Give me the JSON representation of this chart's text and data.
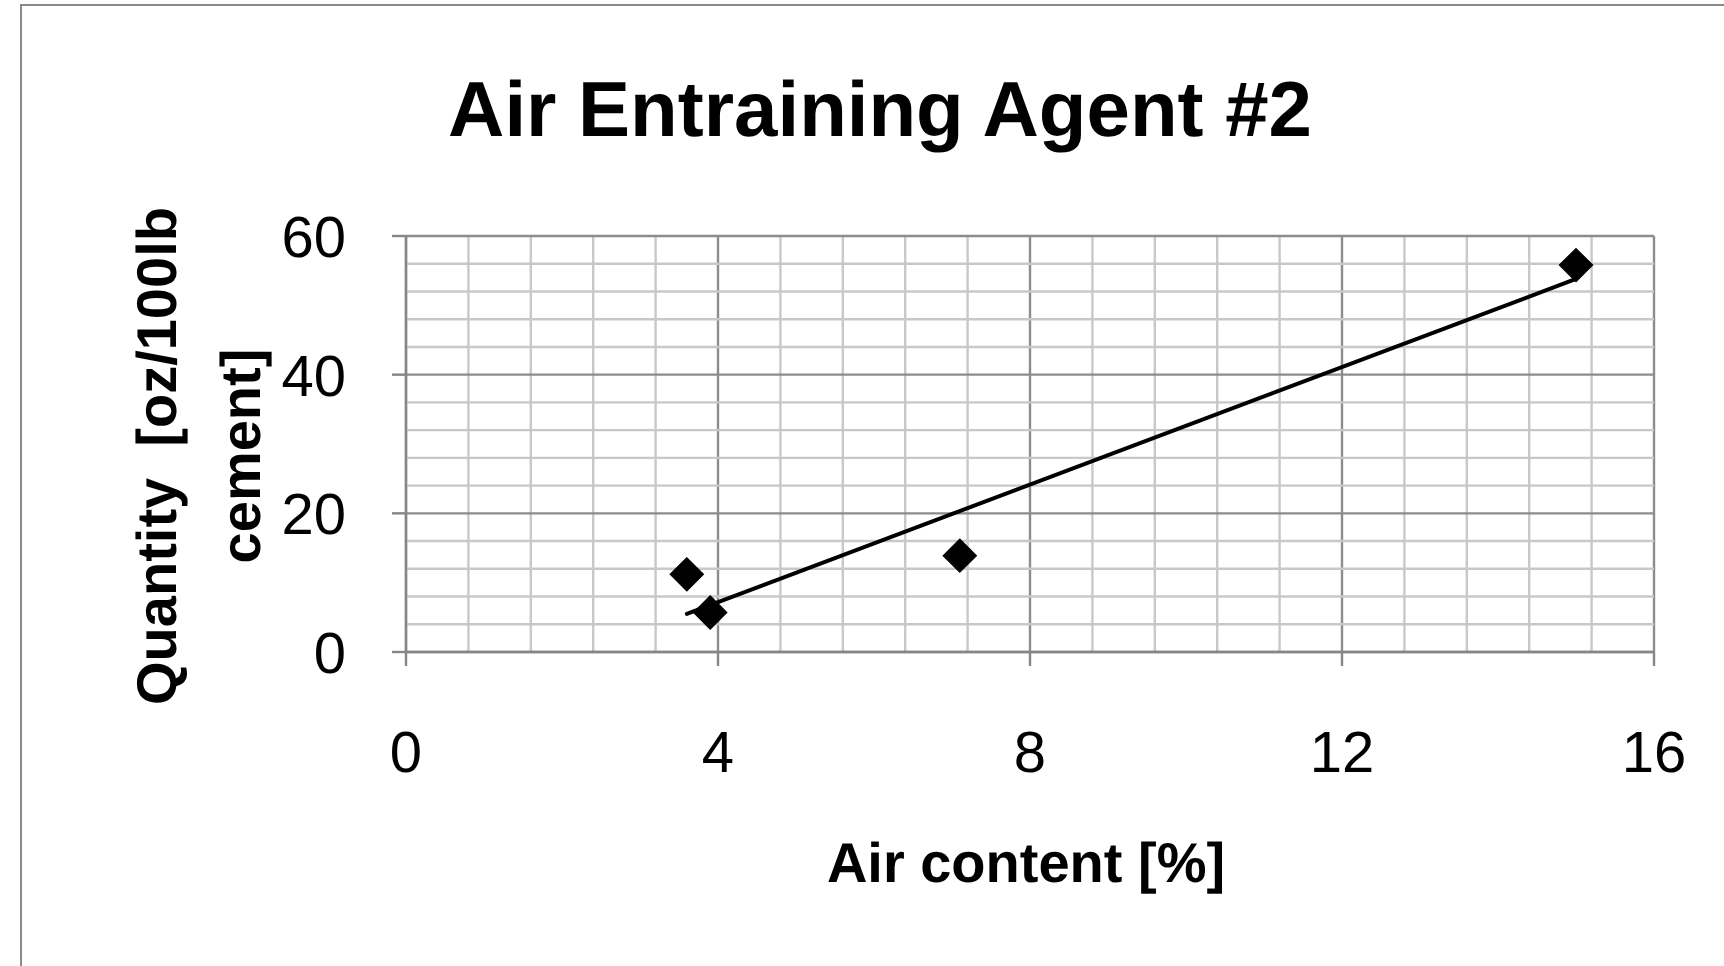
{
  "chart_data": {
    "type": "scatter",
    "title": "Air Entraining Agent #2",
    "xlabel": "Air content [%]",
    "ylabel": "Quantity  [oz/100lb cement]",
    "xlim": [
      0,
      16
    ],
    "ylim": [
      0,
      60
    ],
    "xticks": [
      0,
      {
        "value": 0.8,
        "label": null
      },
      {
        "value": 1.6,
        "label": null
      },
      {
        "value": 2.4,
        "label": null
      },
      {
        "value": 3.2,
        "label": null
      },
      4,
      {
        "value": 4.8,
        "label": null
      },
      {
        "value": 5.6,
        "label": null
      },
      {
        "value": 6.4,
        "label": null
      },
      {
        "value": 7.2,
        "label": null
      },
      8,
      {
        "value": 8.8,
        "label": null
      },
      {
        "value": 9.6,
        "label": null
      },
      {
        "value": 10.4,
        "label": null
      },
      {
        "value": 11.2,
        "label": null
      },
      12,
      {
        "value": 12.8,
        "label": null
      },
      {
        "value": 13.6,
        "label": null
      },
      {
        "value": 14.4,
        "label": null
      },
      {
        "value": 15.2,
        "label": null
      },
      16
    ],
    "yticks": [
      0,
      {
        "value": 4,
        "label": null
      },
      {
        "value": 8,
        "label": null
      },
      {
        "value": 12,
        "label": null
      },
      {
        "value": 16,
        "label": null
      },
      20,
      {
        "value": 24,
        "label": null
      },
      {
        "value": 28,
        "label": null
      },
      {
        "value": 32,
        "label": null
      },
      {
        "value": 36,
        "label": null
      },
      40,
      {
        "value": 44,
        "label": null
      },
      {
        "value": 48,
        "label": null
      },
      {
        "value": 52,
        "label": null
      },
      {
        "value": 56,
        "label": null
      },
      60
    ],
    "grid": true,
    "series": [
      {
        "color": "#000000",
        "marker": "diamond",
        "x": [
          3.6,
          3.9,
          7.1,
          15.0
        ],
        "values": [
          11.2,
          5.7,
          13.9,
          55.8
        ]
      },
      {
        "type": "line",
        "color": "#000000",
        "x": [
          3.6,
          15.0
        ],
        "values": [
          5.5,
          53.8
        ]
      }
    ]
  }
}
